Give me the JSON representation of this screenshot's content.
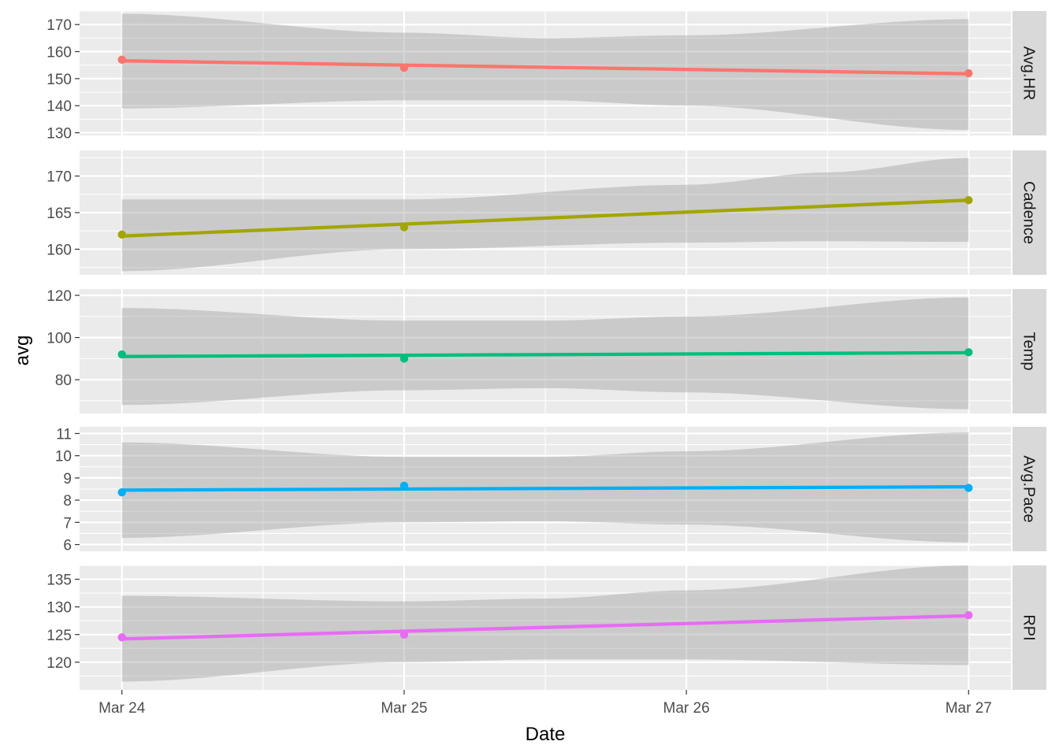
{
  "chart_data": {
    "type": "line",
    "xlabel": "Date",
    "ylabel": "avg",
    "x_ticks": [
      "Mar 24",
      "Mar 25",
      "Mar 26",
      "Mar 27"
    ],
    "x_domain": [
      -0.15,
      3.15
    ],
    "grid": true,
    "legend": "none",
    "facets": [
      {
        "name": "Avg.HR",
        "color": "#F8766D",
        "ylim": [
          129,
          175
        ],
        "y_ticks": [
          130,
          140,
          150,
          160,
          170
        ],
        "points": [
          {
            "x": "Mar 24",
            "y": 157
          },
          {
            "x": "Mar 25",
            "y": 154
          },
          {
            "x": "Mar 27",
            "y": 152
          }
        ],
        "fit_start": 156.6,
        "fit_end": 151.8,
        "band": [
          [
            0,
            139,
            174
          ],
          [
            1,
            142,
            167
          ],
          [
            1.5,
            142,
            165
          ],
          [
            2,
            140,
            166
          ],
          [
            3,
            131,
            172
          ]
        ]
      },
      {
        "name": "Cadence",
        "color": "#A3A500",
        "ylim": [
          156.5,
          173.5
        ],
        "y_ticks": [
          160,
          165,
          170
        ],
        "points": [
          {
            "x": "Mar 24",
            "y": 162
          },
          {
            "x": "Mar 25",
            "y": 163
          },
          {
            "x": "Mar 27",
            "y": 166.7
          }
        ],
        "fit_start": 161.8,
        "fit_end": 166.7,
        "band": [
          [
            0,
            157,
            166.8
          ],
          [
            1,
            160,
            166.8
          ],
          [
            2,
            160.9,
            168.8
          ],
          [
            2.5,
            161.1,
            170.5
          ],
          [
            3,
            161,
            172.5
          ]
        ]
      },
      {
        "name": "Temp",
        "color": "#00BF7D",
        "ylim": [
          64,
          123
        ],
        "y_ticks": [
          80,
          100,
          120
        ],
        "points": [
          {
            "x": "Mar 24",
            "y": 92
          },
          {
            "x": "Mar 25",
            "y": 90
          },
          {
            "x": "Mar 27",
            "y": 93
          }
        ],
        "fit_start": 91,
        "fit_end": 92.8,
        "band": [
          [
            0,
            68,
            114
          ],
          [
            1,
            75,
            108
          ],
          [
            1.5,
            76,
            108
          ],
          [
            2,
            74,
            110
          ],
          [
            3,
            66,
            119
          ]
        ]
      },
      {
        "name": "Avg.Pace",
        "color": "#00B0F6",
        "ylim": [
          5.7,
          11.3
        ],
        "y_ticks": [
          6,
          7,
          8,
          9,
          10,
          11
        ],
        "points": [
          {
            "x": "Mar 24",
            "y": 8.35
          },
          {
            "x": "Mar 25",
            "y": 8.65
          },
          {
            "x": "Mar 27",
            "y": 8.55
          }
        ],
        "fit_start": 8.45,
        "fit_end": 8.6,
        "band": [
          [
            0,
            6.3,
            10.6
          ],
          [
            1,
            7.0,
            9.95
          ],
          [
            1.5,
            7.05,
            9.95
          ],
          [
            2,
            6.9,
            10.2
          ],
          [
            3,
            6.1,
            11.05
          ]
        ]
      },
      {
        "name": "RPI",
        "color": "#E76BF3",
        "ylim": [
          115,
          137.5
        ],
        "y_ticks": [
          120,
          125,
          130,
          135
        ],
        "points": [
          {
            "x": "Mar 24",
            "y": 124.5
          },
          {
            "x": "Mar 25",
            "y": 125
          },
          {
            "x": "Mar 27",
            "y": 128.5
          }
        ],
        "fit_start": 124.2,
        "fit_end": 128.4,
        "band": [
          [
            0,
            116.5,
            132
          ],
          [
            1,
            120,
            131
          ],
          [
            1.5,
            120.5,
            131.5
          ],
          [
            2,
            120.5,
            133
          ],
          [
            3,
            119.5,
            137.5
          ]
        ]
      }
    ]
  }
}
